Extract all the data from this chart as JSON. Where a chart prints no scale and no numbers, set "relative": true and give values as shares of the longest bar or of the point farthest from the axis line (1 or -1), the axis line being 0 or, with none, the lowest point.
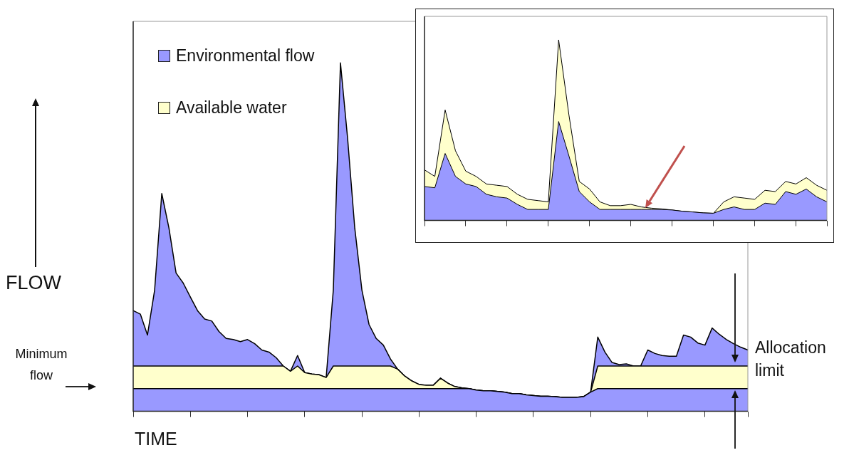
{
  "chart_data": [
    {
      "type": "area",
      "stacked": true,
      "relative": true,
      "marker": "none",
      "legend": "top left",
      "xlabel": "TIME",
      "ylabel": "FLOW",
      "annotations": [
        "Minimum flow",
        "Allocation limit"
      ],
      "categories": [
        null,
        null,
        null,
        null,
        null,
        null,
        null,
        null,
        null,
        null,
        null,
        null,
        null,
        null,
        null,
        null,
        null,
        null,
        null,
        null,
        null,
        null,
        null,
        null,
        null,
        null,
        null,
        null,
        null,
        null,
        null,
        null,
        null,
        null,
        null,
        null,
        null,
        null,
        null,
        null,
        null,
        null,
        null,
        null,
        null,
        null,
        null,
        null,
        null,
        null,
        null,
        null,
        null,
        null,
        null,
        null,
        null,
        null,
        null,
        null,
        null,
        null,
        null,
        null,
        null,
        null,
        null,
        null,
        null,
        null,
        null,
        null,
        null,
        null,
        null,
        null,
        null,
        null,
        null,
        null,
        null,
        null,
        null,
        null,
        null,
        null,
        null
      ],
      "series": [
        {
          "name": "Environmental flow",
          "color": "#9999ff",
          "values": [
            0.065,
            0.065,
            0.065,
            0.065,
            0.065,
            0.065,
            0.065,
            0.065,
            0.065,
            0.065,
            0.065,
            0.065,
            0.065,
            0.065,
            0.065,
            0.065,
            0.065,
            0.065,
            0.065,
            0.065,
            0.065,
            0.065,
            0.065,
            0.065,
            0.065,
            0.065,
            0.065,
            0.065,
            0.065,
            0.065,
            0.065,
            0.065,
            0.065,
            0.065,
            0.065,
            0.065,
            0.065,
            0.065,
            0.065,
            0.065,
            0.065,
            0.065,
            0.065,
            0.065,
            0.065,
            0.065,
            0.065,
            0.065,
            0.061,
            0.059,
            0.059,
            0.057,
            0.055,
            0.051,
            0.051,
            0.047,
            0.045,
            0.043,
            0.043,
            0.042,
            0.04,
            0.04,
            0.04,
            0.042,
            0.055,
            0.065,
            0.065,
            0.065,
            0.065,
            0.065,
            0.065,
            0.065,
            0.065,
            0.065,
            0.065,
            0.065,
            0.065,
            0.065,
            0.065,
            0.065,
            0.065,
            0.065,
            0.065,
            0.065,
            0.065,
            0.065,
            0.065
          ]
        },
        {
          "name": "Available water",
          "color": "#ffffcc",
          "values": [
            0.065,
            0.065,
            0.065,
            0.065,
            0.065,
            0.065,
            0.065,
            0.065,
            0.065,
            0.065,
            0.065,
            0.065,
            0.065,
            0.065,
            0.065,
            0.065,
            0.065,
            0.065,
            0.065,
            0.065,
            0.065,
            0.065,
            0.05,
            0.065,
            0.046,
            0.042,
            0.04,
            0.032,
            0.065,
            0.065,
            0.065,
            0.065,
            0.065,
            0.065,
            0.065,
            0.065,
            0.065,
            0.056,
            0.036,
            0.022,
            0.012,
            0.01,
            0.01,
            0.03,
            0.016,
            0.006,
            0.002,
            0,
            0,
            0,
            0,
            0,
            0,
            0,
            0,
            0,
            0,
            0,
            0,
            0,
            0,
            0,
            0,
            0,
            0,
            0.065,
            0.065,
            0.065,
            0.065,
            0.065,
            0.065,
            0.065,
            0.065,
            0.065,
            0.065,
            0.065,
            0.065,
            0.065,
            0.065,
            0.065,
            0.065,
            0.065,
            0.065,
            0.065,
            0.065,
            0.065,
            0.065
          ]
        },
        {
          "color": "#9999ff",
          "values": [
            0.159,
            0.149,
            0.089,
            0.218,
            0.495,
            0.396,
            0.267,
            0.238,
            0.198,
            0.159,
            0.135,
            0.129,
            0.099,
            0.079,
            0.076,
            0.07,
            0.076,
            0.064,
            0.046,
            0.04,
            0.024,
            0,
            0,
            0.03,
            0,
            0,
            0,
            0,
            0.218,
            0.87,
            0.653,
            0.396,
            0.218,
            0.119,
            0.079,
            0.06,
            0.02,
            0,
            0,
            0,
            0,
            0,
            0,
            0,
            0,
            0,
            0,
            0,
            0,
            0,
            0,
            0,
            0,
            0,
            0,
            0,
            0,
            0,
            0,
            0,
            0,
            0,
            0,
            0,
            0,
            0.083,
            0.04,
            0.01,
            0.004,
            0.006,
            0,
            0,
            0.046,
            0.036,
            0.03,
            0.028,
            0.028,
            0.089,
            0.083,
            0.066,
            0.06,
            0.109,
            0.091,
            0.076,
            0.064,
            0.054,
            0.046
          ]
        }
      ]
    },
    {
      "type": "area",
      "stacked": true,
      "relative": true,
      "marker": "none",
      "categories": [
        null,
        null,
        null,
        null,
        null,
        null,
        null,
        null,
        null,
        null,
        null,
        null,
        null,
        null,
        null,
        null,
        null,
        null,
        null,
        null,
        null,
        null,
        null,
        null,
        null,
        null,
        null,
        null,
        null,
        null,
        null,
        null,
        null,
        null,
        null,
        null,
        null,
        null,
        null,
        null
      ],
      "series": [
        {
          "color": "#9999ff",
          "values": [
            0.188,
            0.181,
            0.371,
            0.244,
            0.202,
            0.188,
            0.145,
            0.131,
            0.124,
            0.089,
            0.061,
            0.061,
            0.061,
            0.548,
            0.357,
            0.16,
            0.103,
            0.061,
            0.061,
            0.061,
            0.061,
            0.061,
            0.061,
            0.061,
            0.058,
            0.051,
            0.047,
            0.042,
            0.04,
            0.061,
            0.075,
            0.061,
            0.061,
            0.096,
            0.089,
            0.16,
            0.145,
            0.174,
            0.131,
            0.103
          ]
        },
        {
          "color": "#ffffcc",
          "values": [
            0.092,
            0.063,
            0.241,
            0.142,
            0.071,
            0.056,
            0.057,
            0.064,
            0.064,
            0.056,
            0.056,
            0.049,
            0.042,
            0.452,
            0.226,
            0.056,
            0.071,
            0.042,
            0.021,
            0.021,
            0.028,
            0.014,
            0.007,
            0.003,
            0,
            0,
            0,
            0,
            0,
            0.042,
            0.056,
            0.063,
            0.056,
            0.071,
            0.071,
            0.056,
            0.057,
            0.063,
            0.064,
            0.064
          ]
        }
      ]
    }
  ]
}
